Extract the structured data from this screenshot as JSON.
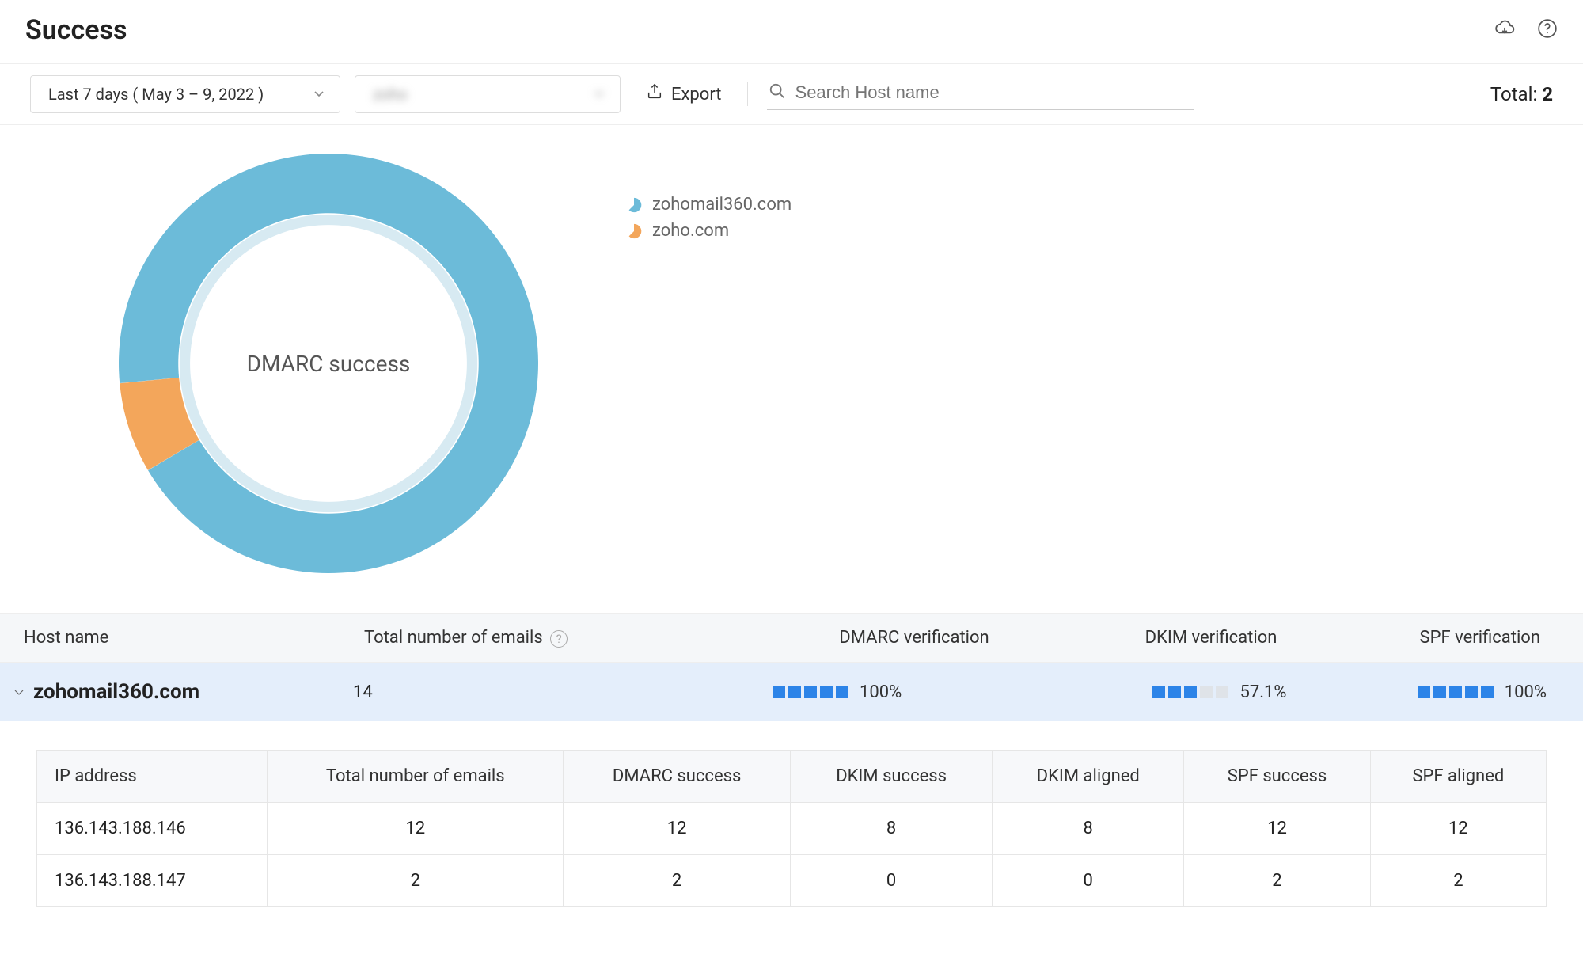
{
  "page": {
    "title": "Success"
  },
  "toolbar": {
    "date_range_label": "Last 7 days ( May 3 – 9, 2022 )",
    "domain_label": "zoho",
    "export_label": "Export",
    "search_placeholder": "Search Host name",
    "total_label": "Total:",
    "total_value": "2"
  },
  "chart": {
    "type": "donut",
    "center_label": "DMARC success",
    "colors": {
      "primary": "#6cbbd9",
      "secondary": "#f3a65b",
      "inner_ring": "#d7eaf2",
      "background": "#ffffff"
    },
    "outer_radius_pct": 50,
    "inner_radius_pct": 33,
    "inner_ring_width_pct": 2.5,
    "slices": [
      {
        "label": "zohomail360.com",
        "value": 93,
        "color": "#6cbbd9"
      },
      {
        "label": "zoho.com",
        "value": 7,
        "color": "#f3a65b"
      }
    ],
    "legend": [
      {
        "label": "zohomail360.com",
        "color": "#6cbbd9"
      },
      {
        "label": "zoho.com",
        "color": "#f3a65b"
      }
    ]
  },
  "table": {
    "columns": {
      "host": "Host name",
      "total": "Total number of emails",
      "dmarc": "DMARC verification",
      "dkim": "DKIM verification",
      "spf": "SPF verification"
    },
    "bar_colors": {
      "filled": "#2c84e8",
      "empty": "#dfe3e8"
    },
    "row": {
      "host": "zohomail360.com",
      "total": "14",
      "dmarc": {
        "filled": 5,
        "total_bars": 5,
        "pct": "100%"
      },
      "dkim": {
        "filled": 3,
        "total_bars": 5,
        "pct": "57.1%"
      },
      "spf": {
        "filled": 5,
        "total_bars": 5,
        "pct": "100%"
      }
    }
  },
  "subtable": {
    "columns": [
      "IP address",
      "Total number of emails",
      "DMARC success",
      "DKIM success",
      "DKIM aligned",
      "SPF success",
      "SPF aligned"
    ],
    "rows": [
      [
        "136.143.188.146",
        "12",
        "12",
        "8",
        "8",
        "12",
        "12"
      ],
      [
        "136.143.188.147",
        "2",
        "2",
        "0",
        "0",
        "2",
        "2"
      ]
    ]
  }
}
